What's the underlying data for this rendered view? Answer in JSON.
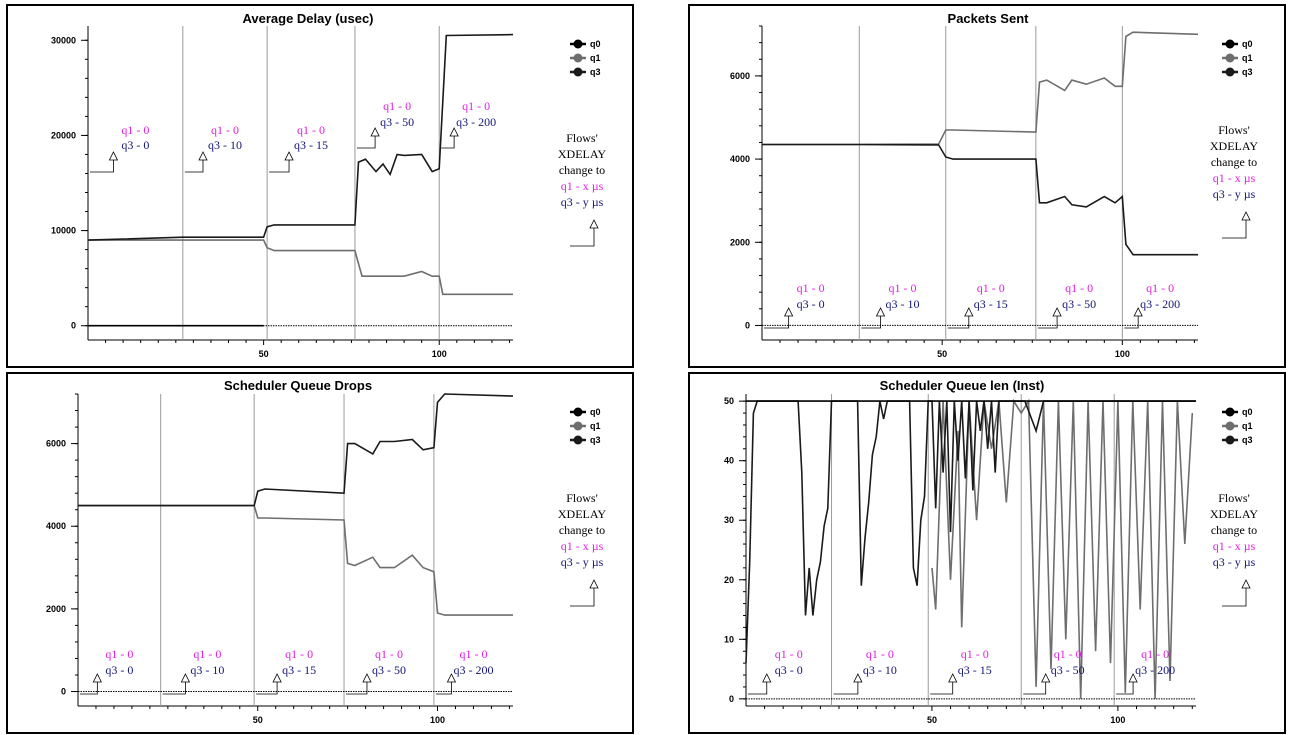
{
  "colors": {
    "q0": "#000000",
    "q1": "#6e6e6e",
    "q3": "#1a1a1a",
    "magenta": "#e020e0",
    "navy": "#141478",
    "vline": "#9a9a9a"
  },
  "annotations": {
    "stages": [
      {
        "q1": "q1 - 0",
        "q3": "q3 - 0"
      },
      {
        "q1": "q1 - 0",
        "q3": "q3 - 10"
      },
      {
        "q1": "q1 - 0",
        "q3": "q3 - 15"
      },
      {
        "q1": "q1 - 0",
        "q3": "q3 - 50"
      },
      {
        "q1": "q1 - 0",
        "q3": "q3 - 200"
      }
    ],
    "side": {
      "line1": "Flows'",
      "line2": "XDELAY",
      "line3": "change to",
      "line4": "q1 - x µs",
      "line5": "q3 - y µs"
    }
  },
  "chart_data": [
    {
      "type": "line",
      "title": "Average Delay (usec)",
      "xlim": [
        0,
        121
      ],
      "ylim": [
        -1500,
        31500
      ],
      "xticks": [
        50,
        100
      ],
      "yticks": [
        0,
        10000,
        20000,
        30000
      ],
      "stage_boundaries": [
        0,
        27,
        51,
        76,
        100,
        121
      ],
      "legend": [
        "q0",
        "q1",
        "q3"
      ],
      "series": [
        {
          "name": "q0",
          "color": "#000000",
          "x": [
            0,
            50
          ],
          "y": [
            0,
            0
          ]
        },
        {
          "name": "q1",
          "color": "#6e6e6e",
          "x": [
            0,
            27,
            50,
            51,
            53,
            76,
            78,
            90,
            95,
            98,
            100,
            101,
            121
          ],
          "y": [
            9000,
            9000,
            9000,
            8200,
            7900,
            7900,
            5200,
            5200,
            5700,
            5200,
            5200,
            3300,
            3300
          ]
        },
        {
          "name": "q3",
          "color": "#1a1a1a",
          "x": [
            0,
            27,
            50,
            51,
            53,
            76,
            77,
            79,
            82,
            84,
            86,
            88,
            90,
            95,
            98,
            100,
            102,
            121
          ],
          "y": [
            9000,
            9300,
            9300,
            10400,
            10600,
            10600,
            17200,
            17500,
            16200,
            17000,
            15900,
            18000,
            17900,
            18000,
            16200,
            16500,
            30500,
            30600
          ]
        },
        {
          "name": "baseline",
          "color": "#000000",
          "x": [
            0,
            121
          ],
          "y": [
            0,
            0
          ]
        }
      ],
      "annotations_side": true
    },
    {
      "type": "line",
      "title": "Packets Sent",
      "xlim": [
        0,
        121
      ],
      "ylim": [
        -350,
        7200
      ],
      "xticks": [
        50,
        100
      ],
      "yticks": [
        0,
        2000,
        4000,
        6000
      ],
      "stage_boundaries": [
        0,
        27,
        51,
        76,
        100,
        121
      ],
      "legend": [
        "q0",
        "q1",
        "q3"
      ],
      "series": [
        {
          "name": "q1",
          "color": "#6e6e6e",
          "x": [
            0,
            27,
            49,
            51,
            53,
            76,
            77,
            79,
            84,
            86,
            90,
            95,
            98,
            100,
            101,
            103,
            121
          ],
          "y": [
            4350,
            4350,
            4360,
            4700,
            4700,
            4650,
            5850,
            5900,
            5650,
            5900,
            5800,
            5950,
            5750,
            5750,
            6950,
            7050,
            7000
          ]
        },
        {
          "name": "q3",
          "color": "#1a1a1a",
          "x": [
            0,
            27,
            49,
            51,
            53,
            76,
            77,
            79,
            84,
            86,
            90,
            95,
            98,
            100,
            101,
            103,
            121
          ],
          "y": [
            4350,
            4350,
            4340,
            4050,
            4000,
            4000,
            2950,
            2950,
            3100,
            2900,
            2850,
            3100,
            2950,
            3100,
            1950,
            1700,
            1700
          ]
        },
        {
          "name": "baseline",
          "color": "#000000",
          "x": [
            0,
            121
          ],
          "y": [
            0,
            0
          ]
        }
      ],
      "annotations_side": true
    },
    {
      "type": "line",
      "title": "Scheduler Queue Drops",
      "xlim": [
        0,
        121
      ],
      "ylim": [
        -350,
        7200
      ],
      "xticks": [
        50,
        100
      ],
      "yticks": [
        0,
        2000,
        4000,
        6000
      ],
      "stage_boundaries": [
        0,
        23,
        49,
        74,
        99,
        121
      ],
      "legend": [
        "q0",
        "q1",
        "q3"
      ],
      "series": [
        {
          "name": "q1",
          "color": "#6e6e6e",
          "x": [
            0,
            23,
            49,
            50,
            52,
            74,
            75,
            77,
            82,
            84,
            88,
            93,
            96,
            99,
            100,
            102,
            121
          ],
          "y": [
            4500,
            4500,
            4500,
            4200,
            4200,
            4150,
            3100,
            3050,
            3250,
            3000,
            3000,
            3300,
            3000,
            2900,
            1900,
            1850,
            1850
          ]
        },
        {
          "name": "q3",
          "color": "#1a1a1a",
          "x": [
            0,
            23,
            49,
            50,
            52,
            74,
            75,
            77,
            82,
            84,
            88,
            93,
            96,
            99,
            100,
            102,
            121
          ],
          "y": [
            4500,
            4500,
            4500,
            4850,
            4900,
            4800,
            6000,
            6000,
            5750,
            6050,
            6050,
            6100,
            5850,
            5900,
            7000,
            7200,
            7150
          ]
        },
        {
          "name": "baseline",
          "color": "#000000",
          "x": [
            0,
            121
          ],
          "y": [
            0,
            0
          ]
        }
      ],
      "annotations_side": true
    },
    {
      "type": "line",
      "title": "Scheduler Queue len (Inst)",
      "xlim": [
        0,
        121
      ],
      "ylim": [
        -1.2,
        51.2
      ],
      "xticks": [
        50,
        100
      ],
      "yticks": [
        0,
        10,
        20,
        30,
        40,
        50
      ],
      "stage_boundaries": [
        0,
        23,
        49,
        74,
        99,
        121
      ],
      "legend": [
        "q0",
        "q1",
        "q3"
      ],
      "series": [
        {
          "name": "q1",
          "color": "#6e6e6e",
          "x": [
            50,
            51,
            53,
            55,
            57,
            58,
            60,
            62,
            64,
            66,
            68,
            70,
            72,
            74,
            76,
            78,
            80,
            82,
            84,
            86,
            88,
            90,
            92,
            94,
            96,
            98,
            100,
            102,
            104,
            106,
            108,
            110,
            112,
            114,
            116,
            118,
            120
          ],
          "y": [
            22,
            15,
            50,
            20,
            45,
            12,
            50,
            30,
            50,
            42,
            50,
            33,
            50,
            48,
            50,
            2,
            50,
            5,
            50,
            10,
            50,
            0,
            50,
            8,
            50,
            6,
            50,
            1,
            50,
            15,
            50,
            0,
            50,
            3,
            50,
            26,
            48
          ]
        },
        {
          "name": "q3",
          "color": "#1a1a1a",
          "x": [
            0,
            1,
            2,
            3,
            4,
            14,
            15,
            16,
            17,
            18,
            19,
            20,
            21,
            22,
            23,
            24,
            25,
            26,
            27,
            30,
            31,
            32,
            33,
            34,
            35,
            36,
            37,
            38,
            39,
            40,
            41,
            42,
            43,
            44,
            45,
            46,
            47,
            48,
            49,
            50,
            51,
            52,
            53,
            54,
            55,
            56,
            57,
            58,
            59,
            60,
            61,
            62,
            63,
            64,
            65,
            66,
            67,
            68,
            70,
            75,
            78,
            80,
            121
          ],
          "y": [
            6,
            23,
            48,
            50,
            50,
            50,
            38,
            14,
            22,
            14,
            20,
            23,
            29,
            32,
            50,
            50,
            50,
            50,
            50,
            50,
            19,
            27,
            33,
            41,
            44,
            50,
            47,
            50,
            50,
            50,
            50,
            50,
            50,
            50,
            22,
            19,
            30,
            34,
            50,
            50,
            32,
            50,
            38,
            50,
            28,
            50,
            40,
            50,
            37,
            50,
            35,
            50,
            45,
            50,
            42,
            50,
            38,
            50,
            50,
            50,
            45,
            50,
            50
          ]
        },
        {
          "name": "q0",
          "color": "#000000",
          "x": [
            0,
            121
          ],
          "y": [
            50,
            50
          ]
        },
        {
          "name": "baseline",
          "color": "#000000",
          "x": [
            0,
            121
          ],
          "y": [
            0,
            0
          ]
        }
      ],
      "annotations_side": true
    }
  ]
}
